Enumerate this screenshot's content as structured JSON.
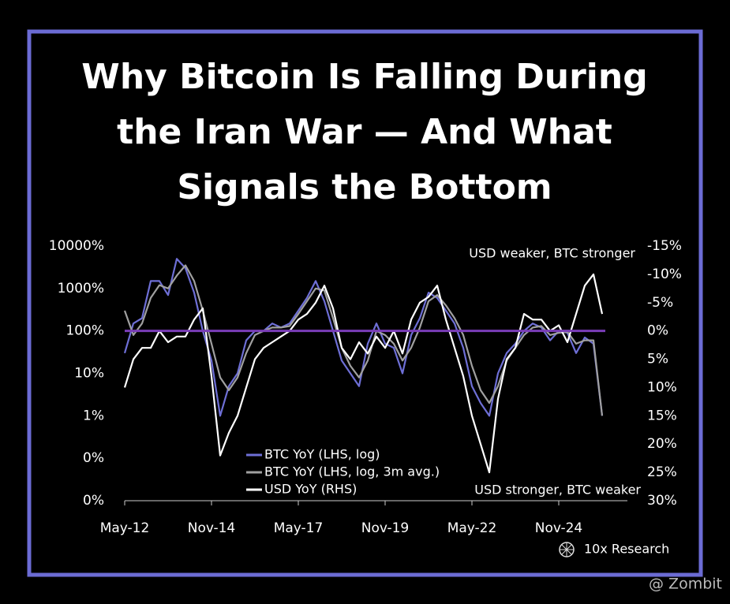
{
  "chart_data": {
    "type": "line",
    "title": [
      "Why Bitcoin Is Falling During",
      "the Iran War — And What",
      "Signals the Bottom"
    ],
    "annotations": [
      "USD weaker, BTC stronger",
      "USD stronger, BTC weaker"
    ],
    "source": "10x Research",
    "watermark": "@ Zombit",
    "x": [
      "May-12",
      "Aug-12",
      "Nov-12",
      "Feb-13",
      "May-13",
      "Aug-13",
      "Nov-13",
      "Feb-14",
      "May-14",
      "Aug-14",
      "Nov-14",
      "Feb-15",
      "May-15",
      "Aug-15",
      "Nov-15",
      "Feb-16",
      "May-16",
      "Aug-16",
      "Nov-16",
      "Feb-17",
      "May-17",
      "Aug-17",
      "Nov-17",
      "Feb-18",
      "May-18",
      "Aug-18",
      "Nov-18",
      "Feb-19",
      "May-19",
      "Aug-19",
      "Nov-19",
      "Feb-20",
      "May-20",
      "Aug-20",
      "Nov-20",
      "Feb-21",
      "May-21",
      "Aug-21",
      "Nov-21",
      "Feb-22",
      "May-22",
      "Aug-22",
      "Nov-22",
      "Feb-23",
      "May-23",
      "Aug-23",
      "Nov-23",
      "Feb-24",
      "May-24",
      "Aug-24",
      "Nov-24",
      "Feb-25",
      "May-25",
      "Aug-25",
      "Nov-25",
      "Feb-26"
    ],
    "xticks": [
      "May-12",
      "Nov-14",
      "May-17",
      "Nov-19",
      "May-22",
      "Nov-24"
    ],
    "log_scale": true,
    "ylim": [
      0.01,
      10000
    ],
    "yticks": [
      {
        "value": 10000,
        "label": "10000%"
      },
      {
        "value": 1000,
        "label": "1000%"
      },
      {
        "value": 100,
        "label": "100%"
      },
      {
        "value": 10,
        "label": "10%"
      },
      {
        "value": 1,
        "label": "1%"
      },
      {
        "value": 0.1,
        "label": "0%"
      },
      {
        "value": 0.01,
        "label": "0%"
      }
    ],
    "y2lim": [
      30,
      -15
    ],
    "y2ticks": [
      {
        "value": -15,
        "label": "-15%"
      },
      {
        "value": -10,
        "label": "-10%"
      },
      {
        "value": -5,
        "label": "-5%"
      },
      {
        "value": 0,
        "label": "0%"
      },
      {
        "value": 5,
        "label": "5%"
      },
      {
        "value": 10,
        "label": "10%"
      },
      {
        "value": 15,
        "label": "15%"
      },
      {
        "value": 20,
        "label": "20%"
      },
      {
        "value": 25,
        "label": "25%"
      },
      {
        "value": 30,
        "label": "30%"
      }
    ],
    "reference_line": {
      "value": 100,
      "color": "#7a3db8"
    },
    "series": [
      {
        "name": "BTC YoY (LHS, log)",
        "color": "#6e6fd6",
        "values": [
          30,
          150,
          200,
          1500,
          1500,
          700,
          5000,
          3000,
          800,
          100,
          20,
          1,
          5,
          10,
          60,
          100,
          100,
          150,
          120,
          150,
          300,
          600,
          1500,
          500,
          100,
          20,
          10,
          5,
          50,
          150,
          50,
          40,
          10,
          80,
          200,
          800,
          600,
          300,
          150,
          40,
          5,
          2,
          1,
          10,
          30,
          50,
          100,
          150,
          120,
          60,
          100,
          90,
          30,
          70,
          50,
          1
        ]
      },
      {
        "name": "BTC YoY (LHS, log, 3m avg.)",
        "color": "#a0a0a0",
        "values": [
          300,
          80,
          150,
          600,
          1200,
          1000,
          2000,
          3500,
          1500,
          300,
          50,
          8,
          4,
          8,
          30,
          80,
          100,
          120,
          120,
          130,
          250,
          500,
          1000,
          900,
          200,
          40,
          15,
          8,
          20,
          100,
          80,
          50,
          20,
          40,
          120,
          500,
          700,
          400,
          200,
          80,
          15,
          4,
          2,
          5,
          20,
          40,
          80,
          120,
          130,
          80,
          90,
          95,
          50,
          60,
          60,
          1
        ]
      },
      {
        "name": "USD YoY (RHS)",
        "color": "#ffffff",
        "axis": "y2",
        "values": [
          10,
          5,
          3,
          3,
          0,
          2,
          1,
          1,
          -2,
          -4,
          8,
          22,
          18,
          15,
          10,
          5,
          3,
          2,
          1,
          0,
          -2,
          -3,
          -5,
          -8,
          -4,
          3,
          5,
          2,
          4,
          1,
          3,
          0,
          4,
          -2,
          -5,
          -6,
          -8,
          -2,
          3,
          8,
          15,
          20,
          25,
          12,
          5,
          3,
          -3,
          -2,
          -2,
          0,
          -1,
          2,
          -3,
          -8,
          -10,
          -3
        ]
      }
    ]
  }
}
